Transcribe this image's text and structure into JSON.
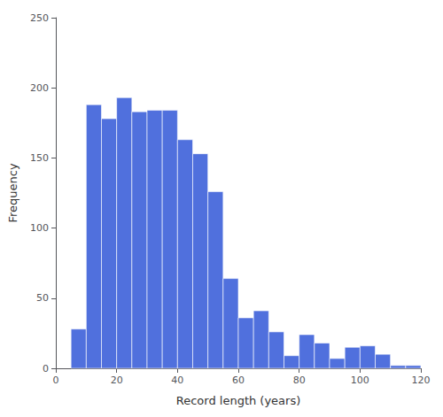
{
  "chart_data": {
    "type": "histogram",
    "xlabel": "Record length (years)",
    "ylabel": "Frequency",
    "bins": [
      5,
      10,
      15,
      20,
      25,
      30,
      35,
      40,
      45,
      50,
      55,
      60,
      65,
      70,
      75,
      80,
      85,
      90,
      95,
      100,
      105,
      110,
      115,
      120
    ],
    "values": [
      28,
      188,
      178,
      193,
      183,
      184,
      184,
      163,
      153,
      126,
      64,
      36,
      41,
      26,
      9,
      24,
      18,
      7,
      15,
      16,
      10,
      2,
      2
    ],
    "xlim": [
      0,
      120
    ],
    "ylim": [
      0,
      250
    ],
    "xticks": [
      0,
      20,
      40,
      60,
      80,
      100,
      120
    ],
    "yticks": [
      0,
      50,
      100,
      150,
      200,
      250
    ],
    "grid": false
  }
}
